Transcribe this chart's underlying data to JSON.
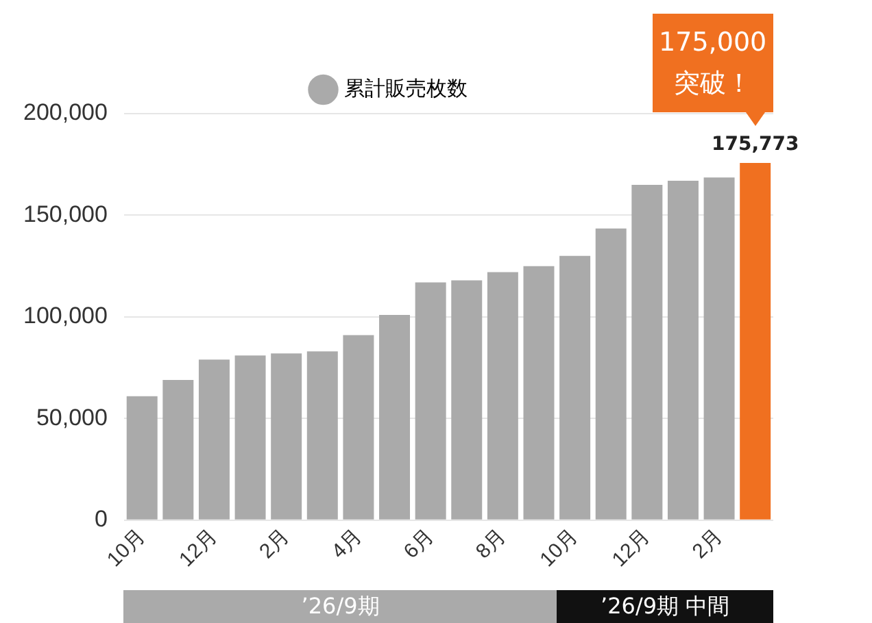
{
  "chart_data": {
    "type": "bar",
    "categories": [
      "10月",
      null,
      "12月",
      null,
      "2月",
      null,
      "4月",
      null,
      "6月",
      null,
      "8月",
      null,
      "10月",
      null,
      "12月",
      null,
      "2月",
      null
    ],
    "series": [
      {
        "name": "累計販売枚数",
        "color": "#aaaaaa",
        "colors": [
          "#aaaaaa",
          "#aaaaaa",
          "#aaaaaa",
          "#aaaaaa",
          "#aaaaaa",
          "#aaaaaa",
          "#aaaaaa",
          "#aaaaaa",
          "#aaaaaa",
          "#aaaaaa",
          "#aaaaaa",
          "#aaaaaa",
          "#aaaaaa",
          "#aaaaaa",
          "#aaaaaa",
          "#aaaaaa",
          "#aaaaaa",
          "#f07020"
        ],
        "values": [
          61000,
          69000,
          79000,
          81000,
          82000,
          83000,
          91000,
          101000,
          117000,
          118000,
          122000,
          125000,
          130000,
          143500,
          165000,
          167000,
          168600,
          175773
        ],
        "value_labels": [
          null,
          null,
          null,
          null,
          null,
          null,
          null,
          null,
          null,
          null,
          null,
          null,
          null,
          null,
          null,
          null,
          null,
          "175,773"
        ]
      }
    ],
    "ylim": [
      0,
      200000
    ],
    "yticks": [
      0,
      {
        "value": 50000,
        "label": "50,000"
      },
      {
        "value": 100000,
        "label": "100,000"
      },
      {
        "value": 150000,
        "label": "150,000"
      },
      {
        "value": 200000,
        "label": "200,000"
      }
    ],
    "grid": "y",
    "legend": "top",
    "annotations": [
      "175,000\n突破！",
      "’26/9期",
      "’26/9期 中間"
    ]
  }
}
